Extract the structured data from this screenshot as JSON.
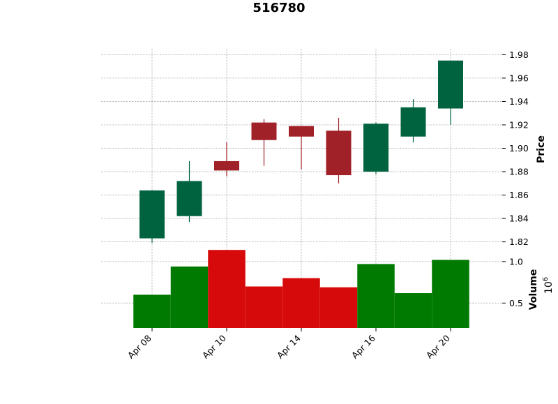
{
  "chart_data": {
    "type": "candlestick",
    "title": "516780",
    "ylabel_price": "Price",
    "ylabel_volume": "Volume",
    "volume_scale_label": "10",
    "volume_scale_exp": "6",
    "price_ylim": [
      1.815,
      1.985
    ],
    "price_ticks": [
      "1.82",
      "1.84",
      "1.86",
      "1.88",
      "1.90",
      "1.92",
      "1.94",
      "1.96",
      "1.98"
    ],
    "volume_ylim": [
      0.2,
      1.15
    ],
    "volume_ticks": [
      "0.5",
      "1.0"
    ],
    "x_tick_labels": [
      "Apr 08",
      "Apr 10",
      "Apr 14",
      "Apr 16",
      "Apr 20"
    ],
    "x_tick_indices": [
      0,
      2,
      4,
      6,
      8
    ],
    "up_color": "#006340",
    "down_color": "#a02128",
    "volume_up_color": "#007a00",
    "volume_down_color": "#d60a0a",
    "candles": [
      {
        "open": 1.823,
        "high": 1.864,
        "low": 1.819,
        "close": 1.864,
        "volume": 0.6
      },
      {
        "open": 1.842,
        "high": 1.889,
        "low": 1.837,
        "close": 1.872,
        "volume": 0.94
      },
      {
        "open": 1.889,
        "high": 1.905,
        "low": 1.876,
        "close": 1.881,
        "volume": 1.14
      },
      {
        "open": 1.922,
        "high": 1.925,
        "low": 1.885,
        "close": 1.907,
        "volume": 0.7
      },
      {
        "open": 1.919,
        "high": 1.919,
        "low": 1.882,
        "close": 1.91,
        "volume": 0.8
      },
      {
        "open": 1.915,
        "high": 1.926,
        "low": 1.87,
        "close": 1.877,
        "volume": 0.69
      },
      {
        "open": 1.88,
        "high": 1.922,
        "low": 1.878,
        "close": 1.921,
        "volume": 0.97
      },
      {
        "open": 1.91,
        "high": 1.942,
        "low": 1.905,
        "close": 1.935,
        "volume": 0.62
      },
      {
        "open": 1.934,
        "high": 1.975,
        "low": 1.92,
        "close": 1.975,
        "volume": 1.02
      }
    ]
  }
}
